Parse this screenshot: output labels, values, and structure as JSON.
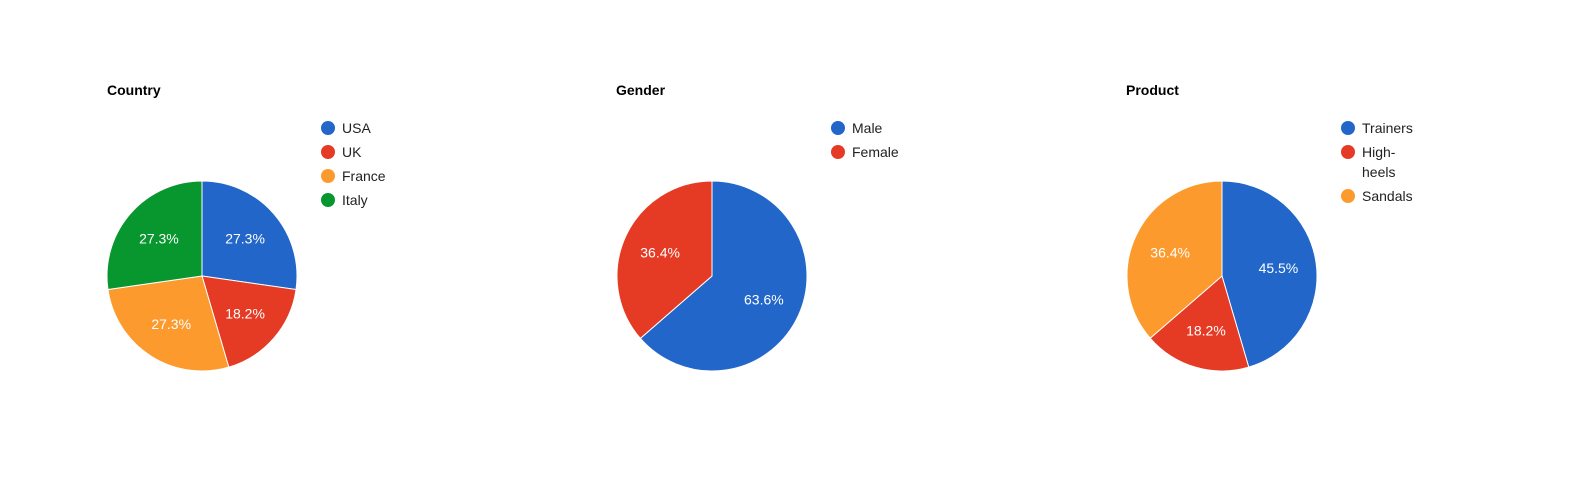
{
  "colors": {
    "blue": "#2166c8",
    "red": "#e53a23",
    "orange": "#fd9a2d",
    "green": "#08962f",
    "background": "#ffffff"
  },
  "chart_data": [
    {
      "type": "pie",
      "title": "Country",
      "categories": [
        "USA",
        "UK",
        "France",
        "Italy"
      ],
      "values": [
        27.3,
        18.2,
        27.3,
        27.3
      ],
      "value_labels": [
        "27.3%",
        "18.2%",
        "27.3%",
        "27.3%"
      ],
      "colors": [
        "#2166c8",
        "#e53a23",
        "#fd9a2d",
        "#08962f"
      ],
      "legend": [
        "USA",
        "UK",
        "France",
        "Italy"
      ],
      "legend_position": "right"
    },
    {
      "type": "pie",
      "title": "Gender",
      "categories": [
        "Male",
        "Female"
      ],
      "values": [
        63.6,
        36.4
      ],
      "value_labels": [
        "63.6%",
        "36.4%"
      ],
      "colors": [
        "#2166c8",
        "#e53a23"
      ],
      "legend": [
        "Male",
        "Female"
      ],
      "legend_position": "right"
    },
    {
      "type": "pie",
      "title": "Product",
      "categories": [
        "Trainers",
        "High-heels",
        "Sandals"
      ],
      "values": [
        45.5,
        18.2,
        36.4
      ],
      "value_labels": [
        "45.5%",
        "18.2%",
        "36.4%"
      ],
      "colors": [
        "#2166c8",
        "#e53a23",
        "#fd9a2d"
      ],
      "legend": [
        "Trainers",
        "High-heels",
        "Sandals"
      ],
      "legend_wrapped": [
        [
          "Trainers"
        ],
        [
          "High-",
          "heels"
        ],
        [
          "Sandals"
        ]
      ],
      "legend_position": "right"
    }
  ]
}
